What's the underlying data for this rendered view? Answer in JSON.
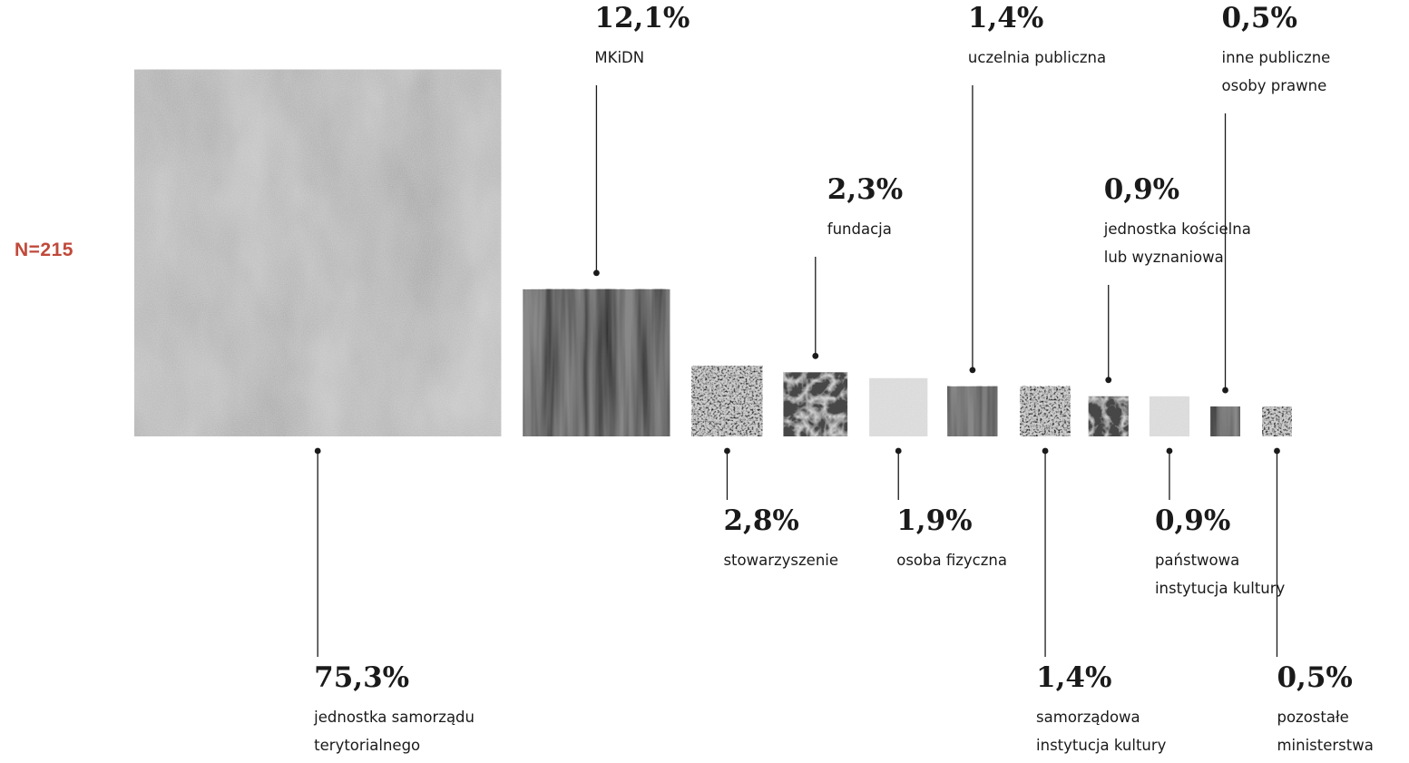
{
  "n_label": "N=215",
  "chart_data": {
    "type": "bar",
    "encoding": "square-area",
    "categories": [
      "jednostka samorządu terytorialnego",
      "MKiDN",
      "stowarzyszenie",
      "fundacja",
      "osoba fizyczna",
      "uczelnia publiczna",
      "samorządowa instytucja kultury",
      "jednostka kościelna lub wyznaniowa",
      "państwowa instytucja kultury",
      "inne publiczne osoby prawne",
      "pozostałe ministerstwa"
    ],
    "values": [
      75.3,
      12.1,
      2.8,
      2.3,
      1.9,
      1.4,
      1.4,
      0.9,
      0.9,
      0.5,
      0.5
    ],
    "value_labels": [
      "75,3%",
      "12,1%",
      "2,8%",
      "2,3%",
      "1,9%",
      "1,4%",
      "1,4%",
      "0,9%",
      "0,9%",
      "0,5%",
      "0,5%"
    ],
    "label_lines": [
      [
        "jednostka samorządu",
        "terytorialnego"
      ],
      [
        "MKiDN"
      ],
      [
        "stowarzyszenie"
      ],
      [
        "fundacja"
      ],
      [
        "osoba fizyczna"
      ],
      [
        "uczelnia publiczna"
      ],
      [
        "samorządowa",
        "instytucja kultury"
      ],
      [
        "jednostka kościelna",
        "lub wyznaniowa"
      ],
      [
        "państwowa",
        "instytucja kultury"
      ],
      [
        "inne publiczne",
        "osoby prawne"
      ],
      [
        "pozostałe",
        "ministerstwa"
      ]
    ],
    "label_side": [
      "below",
      "above",
      "below",
      "above",
      "below",
      "above",
      "below",
      "above",
      "below",
      "above",
      "below"
    ],
    "textures": [
      "mottled",
      "streaks",
      "speckle",
      "fibers",
      "smooth",
      "streaks",
      "speckle",
      "fibers",
      "smooth",
      "streaks",
      "speckle"
    ],
    "unit": "%"
  }
}
